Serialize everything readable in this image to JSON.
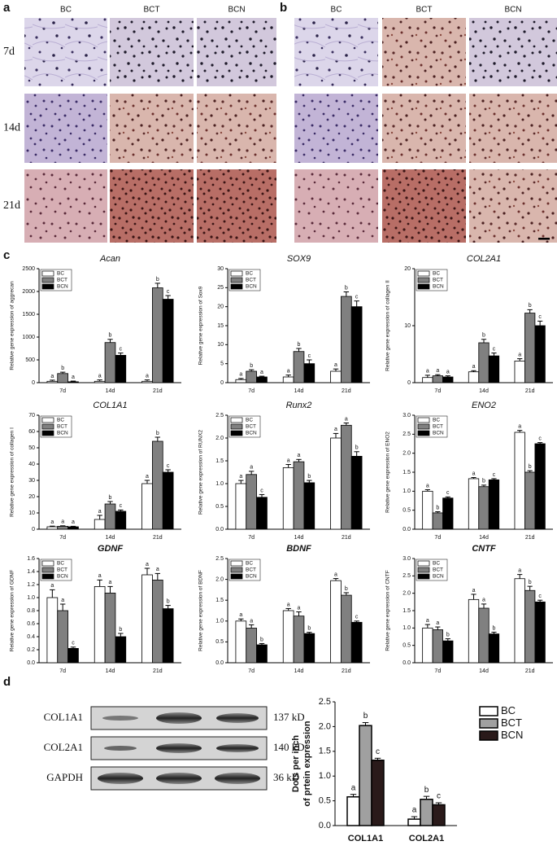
{
  "panel_labels": [
    "a",
    "b",
    "c",
    "d"
  ],
  "panel_a": {
    "columns": [
      "BC",
      "BCT",
      "BCN"
    ],
    "rows": [
      "7d",
      "14d",
      "21d"
    ]
  },
  "panel_b": {
    "columns": [
      "BC",
      "BCT",
      "BCN"
    ]
  },
  "blot": {
    "rows": [
      {
        "label": "COL1A1",
        "size": "137 kD"
      },
      {
        "label": "COL2A1",
        "size": "140 kD"
      },
      {
        "label": "GAPDH",
        "size": "36 kD"
      }
    ]
  },
  "chart_data": [
    {
      "type": "bar",
      "title": "Acan",
      "ylabel": "Relative gene expression of aggrecan",
      "categories": [
        "7d",
        "14d",
        "21d"
      ],
      "series": [
        {
          "name": "BC",
          "color": "#ffffff",
          "values": [
            30,
            30,
            30
          ],
          "errors": [
            25,
            30,
            30
          ],
          "annotations": [
            "a",
            "a",
            "a"
          ]
        },
        {
          "name": "BCT",
          "color": "#808080",
          "values": [
            200,
            880,
            2080
          ],
          "errors": [
            30,
            70,
            100
          ],
          "annotations": [
            "b",
            "b",
            "b"
          ]
        },
        {
          "name": "BCN",
          "color": "#000000",
          "values": [
            20,
            600,
            1830
          ],
          "errors": [
            15,
            50,
            80
          ],
          "annotations": [
            "a",
            "c",
            "c"
          ]
        }
      ],
      "ylim": [
        0,
        2500
      ],
      "yticks": [
        0,
        500,
        1000,
        1500,
        2000,
        2500
      ],
      "legend": "upper left"
    },
    {
      "type": "bar",
      "title": "SOX9",
      "ylabel": "Relative gene expression of Sox9",
      "categories": [
        "7d",
        "14d",
        "21d"
      ],
      "series": [
        {
          "name": "BC",
          "color": "#ffffff",
          "values": [
            0.8,
            1.5,
            3
          ],
          "errors": [
            0.3,
            0.5,
            0.6
          ],
          "annotations": [
            "a",
            "a",
            "a"
          ]
        },
        {
          "name": "BCT",
          "color": "#808080",
          "values": [
            3,
            8.2,
            22.7
          ],
          "errors": [
            0.4,
            0.8,
            1.2
          ],
          "annotations": [
            "b",
            "b",
            "b"
          ]
        },
        {
          "name": "BCN",
          "color": "#000000",
          "values": [
            1.5,
            5,
            20
          ],
          "errors": [
            0.2,
            1,
            1.5
          ],
          "annotations": [
            "a",
            "c",
            "c"
          ]
        }
      ],
      "ylim": [
        0,
        30
      ],
      "yticks": [
        0,
        5,
        10,
        15,
        20,
        25,
        30
      ],
      "legend": "upper left"
    },
    {
      "type": "bar",
      "title": "COL2A1",
      "ylabel": "Relative gene expression of collagen II",
      "categories": [
        "7d",
        "14d",
        "21d"
      ],
      "series": [
        {
          "name": "BC",
          "color": "#ffffff",
          "values": [
            0.9,
            1.9,
            3.8
          ],
          "errors": [
            0.4,
            0.2,
            0.4
          ],
          "annotations": [
            "a",
            "a",
            "a"
          ]
        },
        {
          "name": "BCT",
          "color": "#808080",
          "values": [
            1.2,
            7,
            12.2
          ],
          "errors": [
            0.2,
            0.6,
            0.6
          ],
          "annotations": [
            "a",
            "b",
            "b"
          ]
        },
        {
          "name": "BCN",
          "color": "#000000",
          "values": [
            1,
            4.7,
            10
          ],
          "errors": [
            0.2,
            0.5,
            0.8
          ],
          "annotations": [
            "a",
            "c",
            "c"
          ]
        }
      ],
      "ylim": [
        0,
        20
      ],
      "yticks": [
        0,
        10,
        20
      ],
      "legend": "upper left"
    },
    {
      "type": "bar",
      "title": "COL1A1",
      "ylabel": "Relative gene expression of collagen I",
      "categories": [
        "7d",
        "14d",
        "21d"
      ],
      "series": [
        {
          "name": "BC",
          "color": "#ffffff",
          "values": [
            1.5,
            6,
            28
          ],
          "errors": [
            0.4,
            2.5,
            2
          ],
          "annotations": [
            "a",
            "a",
            "a"
          ]
        },
        {
          "name": "BCT",
          "color": "#808080",
          "values": [
            1.8,
            15.5,
            54
          ],
          "errors": [
            0.3,
            1.5,
            2.5
          ],
          "annotations": [
            "a",
            "b",
            "b"
          ]
        },
        {
          "name": "BCN",
          "color": "#000000",
          "values": [
            1.5,
            11,
            35
          ],
          "errors": [
            0.3,
            0.8,
            1.5
          ],
          "annotations": [
            "a",
            "c",
            "c"
          ]
        }
      ],
      "ylim": [
        0,
        70
      ],
      "yticks": [
        0,
        10,
        20,
        30,
        40,
        50,
        60,
        70
      ],
      "legend": "upper left"
    },
    {
      "type": "bar",
      "title": "Runx2",
      "ylabel": "Relative gene expression of RUNX2",
      "categories": [
        "7d",
        "14d",
        "21d"
      ],
      "series": [
        {
          "name": "BC",
          "color": "#ffffff",
          "values": [
            1.0,
            1.35,
            2.0
          ],
          "errors": [
            0.07,
            0.07,
            0.1
          ],
          "annotations": [
            "a",
            "a",
            "a"
          ]
        },
        {
          "name": "BCT",
          "color": "#808080",
          "values": [
            1.2,
            1.48,
            2.28
          ],
          "errors": [
            0.07,
            0.05,
            0.05
          ],
          "annotations": [
            "a",
            "a",
            "a"
          ]
        },
        {
          "name": "BCN",
          "color": "#000000",
          "values": [
            0.7,
            1.02,
            1.6
          ],
          "errors": [
            0.06,
            0.05,
            0.1
          ],
          "annotations": [
            "c",
            "b",
            "b"
          ]
        }
      ],
      "ylim": [
        0,
        2.5
      ],
      "yticks": [
        {
          "value": 0,
          "label": "0.0"
        },
        0.5,
        {
          "value": 1,
          "label": "1.0"
        },
        1.5,
        {
          "value": 2,
          "label": "2.0"
        },
        2.5
      ],
      "legend": "upper left"
    },
    {
      "type": "bar",
      "title": "ENO2",
      "ylabel": "Relative gene expression of ENO2",
      "categories": [
        "7d",
        "14d",
        "21d"
      ],
      "series": [
        {
          "name": "BC",
          "color": "#ffffff",
          "values": [
            1.0,
            1.33,
            2.55
          ],
          "errors": [
            0.04,
            0.03,
            0.05
          ],
          "annotations": [
            "a",
            "a",
            "a"
          ]
        },
        {
          "name": "BCT",
          "color": "#808080",
          "values": [
            0.43,
            1.12,
            1.5
          ],
          "errors": [
            0.03,
            0.04,
            0.04
          ],
          "annotations": [
            "b",
            "b",
            "b"
          ]
        },
        {
          "name": "BCN",
          "color": "#000000",
          "values": [
            0.82,
            1.3,
            2.25
          ],
          "errors": [
            0.03,
            0.03,
            0.03
          ],
          "annotations": [
            "c",
            "c",
            "c"
          ]
        }
      ],
      "ylim": [
        0,
        3
      ],
      "yticks": [
        {
          "value": 0,
          "label": "0.0"
        },
        0.5,
        {
          "value": 1,
          "label": "1.0"
        },
        1.5,
        {
          "value": 2,
          "label": "2.0"
        },
        2.5,
        {
          "value": 3,
          "label": "3.0"
        }
      ],
      "legend": "upper left"
    },
    {
      "type": "bar",
      "title": "GDNF",
      "title_weight": "bold",
      "ylabel": "Relative gene expression of GDNF",
      "categories": [
        "7d",
        "14d",
        "21d"
      ],
      "series": [
        {
          "name": "BC",
          "color": "#ffffff",
          "values": [
            1.0,
            1.17,
            1.35
          ],
          "errors": [
            0.12,
            0.1,
            0.1
          ],
          "annotations": [
            "a",
            "a",
            "a"
          ]
        },
        {
          "name": "BCT",
          "color": "#808080",
          "values": [
            0.8,
            1.07,
            1.27
          ],
          "errors": [
            0.1,
            0.1,
            0.1
          ],
          "annotations": [
            "a",
            "a",
            "a"
          ]
        },
        {
          "name": "BCN",
          "color": "#000000",
          "values": [
            0.22,
            0.4,
            0.83
          ],
          "errors": [
            0.02,
            0.05,
            0.05
          ],
          "annotations": [
            "c",
            "b",
            "b"
          ]
        }
      ],
      "ylim": [
        0,
        1.6
      ],
      "yticks": [
        {
          "value": 0,
          "label": "0.0"
        },
        0.2,
        0.4,
        0.6,
        0.8,
        {
          "value": 1,
          "label": "1.0"
        },
        1.2,
        1.4,
        1.6
      ],
      "legend": "upper left"
    },
    {
      "type": "bar",
      "title": "BDNF",
      "title_weight": "bold",
      "ylabel": "Relative gene expression of BDNF",
      "categories": [
        "7d",
        "14d",
        "21d"
      ],
      "series": [
        {
          "name": "BC",
          "color": "#ffffff",
          "values": [
            1.0,
            1.25,
            1.97
          ],
          "errors": [
            0.05,
            0.05,
            0.05
          ],
          "annotations": [
            "a",
            "a",
            "a"
          ]
        },
        {
          "name": "BCT",
          "color": "#808080",
          "values": [
            0.83,
            1.12,
            1.62
          ],
          "errors": [
            0.08,
            0.1,
            0.06
          ],
          "annotations": [
            "a",
            "a",
            "b"
          ]
        },
        {
          "name": "BCN",
          "color": "#000000",
          "values": [
            0.43,
            0.7,
            0.97
          ],
          "errors": [
            0.03,
            0.03,
            0.03
          ],
          "annotations": [
            "b",
            "b",
            "c"
          ]
        }
      ],
      "ylim": [
        0,
        2.5
      ],
      "yticks": [
        {
          "value": 0,
          "label": "0.0"
        },
        0.5,
        {
          "value": 1,
          "label": "1.0"
        },
        1.5,
        {
          "value": 2,
          "label": "2.0"
        },
        2.5
      ],
      "legend": "upper left"
    },
    {
      "type": "bar",
      "title": "CNTF",
      "title_weight": "bold",
      "ylabel": "Relative gene expression of CNTF",
      "categories": [
        "7d",
        "14d",
        "21d"
      ],
      "series": [
        {
          "name": "BC",
          "color": "#ffffff",
          "values": [
            1.0,
            1.82,
            2.42
          ],
          "errors": [
            0.1,
            0.15,
            0.12
          ],
          "annotations": [
            "a",
            "a",
            "a"
          ]
        },
        {
          "name": "BCT",
          "color": "#808080",
          "values": [
            0.95,
            1.57,
            2.08
          ],
          "errors": [
            0.08,
            0.12,
            0.12
          ],
          "annotations": [
            "a",
            "a",
            "b"
          ]
        },
        {
          "name": "BCN",
          "color": "#000000",
          "values": [
            0.63,
            0.83,
            1.75
          ],
          "errors": [
            0.06,
            0.05,
            0.05
          ],
          "annotations": [
            "b",
            "b",
            "c"
          ]
        }
      ],
      "ylim": [
        0,
        3
      ],
      "yticks": [
        {
          "value": 0,
          "label": "0.0"
        },
        0.5,
        {
          "value": 1,
          "label": "1.0"
        },
        1.5,
        {
          "value": 2,
          "label": "2.0"
        },
        2.5,
        {
          "value": 3,
          "label": "3.0"
        }
      ],
      "legend": "upper left"
    },
    {
      "type": "bar",
      "ylabel": [
        "Dots per inch",
        "of prtein expression"
      ],
      "categories": [
        "COL1A1",
        "COL2A1"
      ],
      "series": [
        {
          "name": "BC",
          "color": "#ffffff",
          "values": [
            0.58,
            0.13
          ],
          "errors": [
            0.05,
            0.05
          ],
          "annotations": [
            "a",
            "a"
          ]
        },
        {
          "name": "BCT",
          "color": "#a0a0a0",
          "values": [
            2.02,
            0.53
          ],
          "errors": [
            0.06,
            0.06
          ],
          "annotations": [
            "b",
            "b"
          ]
        },
        {
          "name": "BCN",
          "color": "#2a1a1a",
          "values": [
            1.32,
            0.42
          ],
          "errors": [
            0.04,
            0.04
          ],
          "annotations": [
            "c",
            "c"
          ]
        }
      ],
      "ylim": [
        0,
        2.5
      ],
      "yticks": [
        {
          "value": 0,
          "label": "0.0"
        },
        0.5,
        {
          "value": 1,
          "label": "1.0"
        },
        1.5,
        {
          "value": 2,
          "label": "2.0"
        },
        2.5
      ],
      "legend": "right"
    }
  ]
}
